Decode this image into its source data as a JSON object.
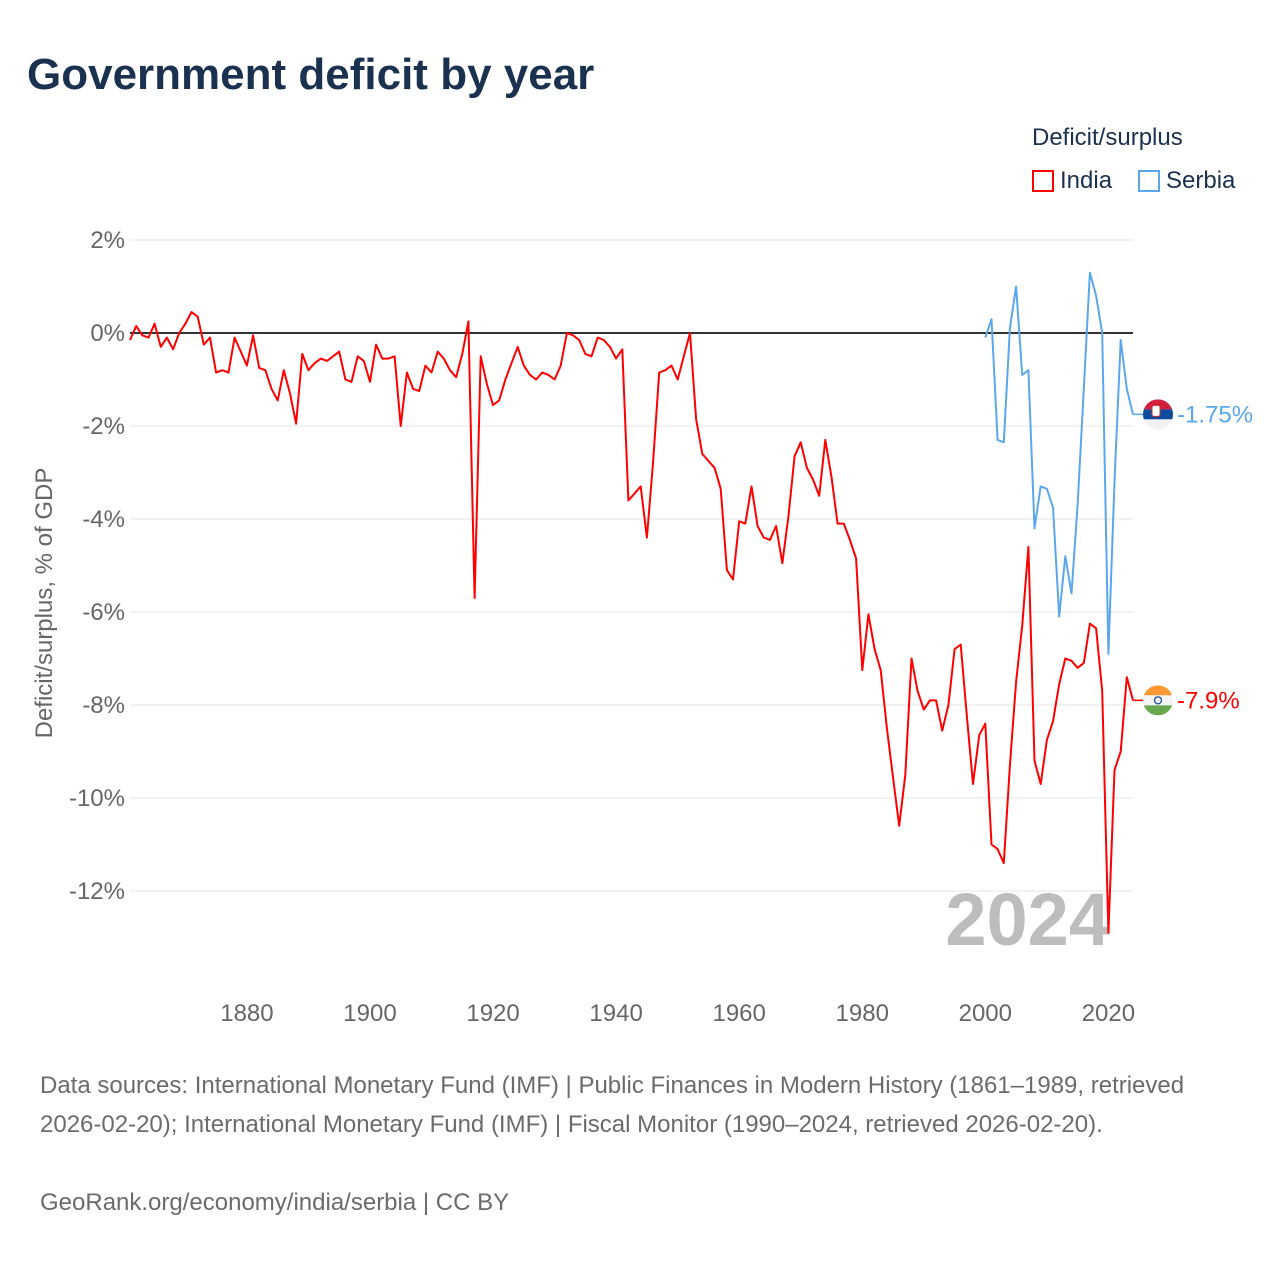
{
  "title": "Government deficit by year",
  "legend": {
    "title": "Deficit/surplus",
    "items": [
      {
        "name": "India",
        "color": "#ff0000"
      },
      {
        "name": "Serbia",
        "color": "#5ba7ec"
      }
    ]
  },
  "chart_data": {
    "type": "line",
    "title": "Government deficit by year",
    "xlabel": "",
    "ylabel": "Deficit/surplus, % of GDP",
    "xlim": [
      1861,
      2024
    ],
    "ylim": [
      -13.5,
      2.4
    ],
    "yticks": [
      2,
      0,
      -2,
      -4,
      -6,
      -8,
      -10,
      -12
    ],
    "ytick_labels": [
      "2%",
      "0%",
      "-2%",
      "-4%",
      "-6%",
      "-8%",
      "-10%",
      "-12%"
    ],
    "xticks": [
      1880,
      1900,
      1920,
      1940,
      1960,
      1980,
      2000,
      2020
    ],
    "xtick_labels": [
      "1880",
      "1900",
      "1920",
      "1940",
      "1960",
      "1980",
      "2000",
      "2020"
    ],
    "grid": true,
    "legend_position": "top-right",
    "year_label": "2024",
    "series": [
      {
        "name": "India",
        "color": "#ff0000",
        "start_year": 1861,
        "end_label": "-7.9%",
        "values": [
          -0.15,
          0.15,
          -0.05,
          -0.1,
          0.2,
          -0.3,
          -0.1,
          -0.35,
          0.0,
          0.2,
          0.45,
          0.35,
          -0.25,
          -0.1,
          -0.85,
          -0.8,
          -0.85,
          -0.1,
          -0.4,
          -0.7,
          -0.05,
          -0.75,
          -0.8,
          -1.2,
          -1.45,
          -0.8,
          -1.3,
          -1.95,
          -0.45,
          -0.8,
          -0.65,
          -0.55,
          -0.6,
          -0.5,
          -0.4,
          -1.0,
          -1.05,
          -0.5,
          -0.6,
          -1.05,
          -0.25,
          -0.55,
          -0.55,
          -0.5,
          -2.0,
          -0.85,
          -1.2,
          -1.25,
          -0.7,
          -0.85,
          -0.4,
          -0.55,
          -0.8,
          -0.95,
          -0.45,
          0.25,
          -5.7,
          -0.5,
          -1.1,
          -1.55,
          -1.45,
          -1.0,
          -0.65,
          -0.3,
          -0.7,
          -0.9,
          -1.0,
          -0.85,
          -0.9,
          -1.0,
          -0.7,
          0.0,
          -0.05,
          -0.15,
          -0.45,
          -0.5,
          -0.1,
          -0.15,
          -0.3,
          -0.55,
          -0.35,
          -3.6,
          -3.45,
          -3.3,
          -4.4,
          -2.8,
          -0.85,
          -0.8,
          -0.7,
          -1.0,
          -0.5,
          0.0,
          -1.85,
          -2.6,
          -2.75,
          -2.9,
          -3.35,
          -5.1,
          -5.3,
          -4.05,
          -4.1,
          -3.3,
          -4.15,
          -4.4,
          -4.45,
          -4.15,
          -4.95,
          -3.95,
          -2.65,
          -2.35,
          -2.9,
          -3.15,
          -3.5,
          -2.3,
          -3.1,
          -4.1,
          -4.1,
          -4.45,
          -4.85,
          -7.25,
          -6.05,
          -6.8,
          -7.25,
          -8.5,
          -9.55,
          -10.6,
          -9.5,
          -7.0,
          -7.7,
          -8.1,
          -7.9,
          -7.9,
          -8.55,
          -8.0,
          -6.8,
          -6.7,
          -8.25,
          -9.7,
          -8.65,
          -8.4,
          -11.0,
          -11.1,
          -11.4,
          -9.3,
          -7.5,
          -6.3,
          -4.6,
          -9.2,
          -9.7,
          -8.75,
          -8.35,
          -7.55,
          -7.0,
          -7.05,
          -7.2,
          -7.1,
          -6.25,
          -6.35,
          -7.7,
          -12.9,
          -9.4,
          -9.0,
          -7.4,
          -7.9
        ]
      },
      {
        "name": "Serbia",
        "color": "#5ba7ec",
        "start_year": 2000,
        "end_label": "-1.75%",
        "values": [
          -0.1,
          0.3,
          -2.3,
          -2.35,
          0.1,
          1.0,
          -0.9,
          -0.8,
          -4.2,
          -3.3,
          -3.35,
          -3.75,
          -6.1,
          -4.8,
          -5.6,
          -3.7,
          -1.2,
          1.3,
          0.8,
          0.0,
          -6.9,
          -3.2,
          -0.15,
          -1.2,
          -1.75
        ]
      }
    ]
  },
  "footer": {
    "sources": "Data sources: International Monetary Fund (IMF) | Public Finances in Modern History (1861–1989, retrieved 2026-02-20); International Monetary Fund (IMF) | Fiscal Monitor (1990–2024, retrieved 2026-02-20).",
    "credit": "GeoRank.org/economy/india/serbia | CC BY"
  }
}
